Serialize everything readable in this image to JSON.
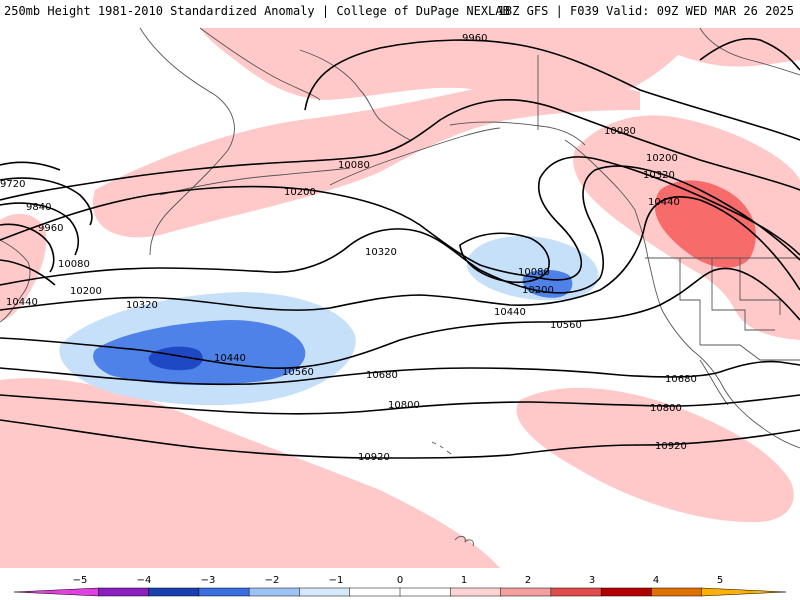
{
  "header": {
    "title": "250mb Height 1981-2010 Standardized Anomaly | College of DuPage NEXLAB",
    "run_info": "18Z GFS | F039 Valid: 09Z WED MAR 26 2025"
  },
  "colors": {
    "pos1": "#ffc9c9",
    "pos2": "#f76b6b",
    "neg1": "#c6e0fa",
    "neg2": "#4f82e8",
    "neg3": "#1f48c4",
    "coast": "#555555",
    "contour": "#000000"
  },
  "contour_labels": [
    {
      "id": "c9960-north",
      "text": "9960"
    },
    {
      "id": "c10080-pacific",
      "text": "10080"
    },
    {
      "id": "c10080-ak",
      "text": "10080"
    },
    {
      "id": "c10200-bc",
      "text": "10200"
    },
    {
      "id": "c10320-bc",
      "text": "10320"
    },
    {
      "id": "c10440-bc",
      "text": "10440"
    },
    {
      "id": "c10200-pacific",
      "text": "10200"
    },
    {
      "id": "c9720-west",
      "text": "9720"
    },
    {
      "id": "c9840-west",
      "text": "9840"
    },
    {
      "id": "c9960-west",
      "text": "9960"
    },
    {
      "id": "c10080-west",
      "text": "10080"
    },
    {
      "id": "c10200-west",
      "text": "10200"
    },
    {
      "id": "c10440-west",
      "text": "10440"
    },
    {
      "id": "c10320-west",
      "text": "10320"
    },
    {
      "id": "c10320-mid",
      "text": "10320"
    },
    {
      "id": "c10080-low",
      "text": "10080"
    },
    {
      "id": "c10200-low",
      "text": "10200"
    },
    {
      "id": "c10440-low",
      "text": "10440"
    },
    {
      "id": "c10440-west-low",
      "text": "10440"
    },
    {
      "id": "c10560-west",
      "text": "10560"
    },
    {
      "id": "c10560-east",
      "text": "10560"
    },
    {
      "id": "c10680-mid",
      "text": "10680"
    },
    {
      "id": "c10680-east",
      "text": "10680"
    },
    {
      "id": "c10800-mid",
      "text": "10800"
    },
    {
      "id": "c10800-east",
      "text": "10800"
    },
    {
      "id": "c10920-mid",
      "text": "10920"
    },
    {
      "id": "c10920-east",
      "text": "10920"
    }
  ],
  "legend": {
    "ticks": [
      "−5",
      "−4",
      "−3",
      "−2",
      "−1",
      "0",
      "1",
      "2",
      "3",
      "4",
      "5"
    ],
    "colors": [
      "#e040e0",
      "#8a1fc0",
      "#1a3fb0",
      "#3b6fe0",
      "#9cc3f5",
      "#d6e9fb",
      "#ffffff",
      "#ffffff",
      "#ffd3d3",
      "#f5a0a0",
      "#e04b4b",
      "#b00000",
      "#e07000",
      "#ffb000"
    ]
  }
}
